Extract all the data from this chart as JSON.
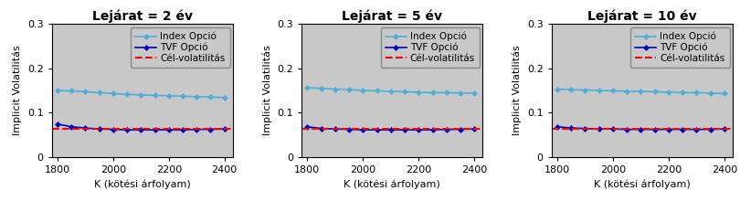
{
  "titles": [
    "Lejárat = 2 év",
    "Lejárat = 5 év",
    "Lejárat = 10 év"
  ],
  "xlabel": "K (kötési árfolyam)",
  "ylabel": "Implicit Volatilitás",
  "x": [
    1800,
    1850,
    1900,
    1950,
    2000,
    2050,
    2100,
    2150,
    2200,
    2250,
    2300,
    2350,
    2400
  ],
  "index_opció": [
    [
      0.15,
      0.149,
      0.147,
      0.145,
      0.143,
      0.141,
      0.14,
      0.139,
      0.138,
      0.137,
      0.136,
      0.135,
      0.134
    ],
    [
      0.156,
      0.155,
      0.153,
      0.152,
      0.15,
      0.149,
      0.148,
      0.147,
      0.146,
      0.145,
      0.145,
      0.144,
      0.144
    ],
    [
      0.153,
      0.152,
      0.151,
      0.15,
      0.149,
      0.148,
      0.148,
      0.147,
      0.146,
      0.145,
      0.145,
      0.144,
      0.143
    ]
  ],
  "tvf_opció": [
    [
      0.074,
      0.068,
      0.065,
      0.063,
      0.062,
      0.061,
      0.061,
      0.061,
      0.061,
      0.061,
      0.062,
      0.062,
      0.063
    ],
    [
      0.068,
      0.064,
      0.063,
      0.062,
      0.061,
      0.061,
      0.061,
      0.061,
      0.061,
      0.061,
      0.062,
      0.062,
      0.063
    ],
    [
      0.068,
      0.065,
      0.064,
      0.063,
      0.063,
      0.062,
      0.062,
      0.062,
      0.062,
      0.062,
      0.062,
      0.062,
      0.063
    ]
  ],
  "cel_volatilitas": [
    0.063,
    0.063,
    0.063
  ],
  "ylim": [
    0,
    0.3
  ],
  "yticks": [
    0,
    0.1,
    0.2,
    0.3
  ],
  "ytick_labels": [
    "0",
    "0.1",
    "0.2",
    "0.3"
  ],
  "xticks": [
    1800,
    2000,
    2200,
    2400
  ],
  "index_color": "#4DAEDB",
  "tvf_color": "#0000CC",
  "cel_color": "#FF0000",
  "legend_labels": [
    "Index Opció",
    "TVF Opció",
    "Cél-volatilitás"
  ],
  "bg_color": "#C8C8C8",
  "title_fontsize": 10,
  "axis_fontsize": 8,
  "tick_fontsize": 8,
  "legend_fontsize": 7.5
}
